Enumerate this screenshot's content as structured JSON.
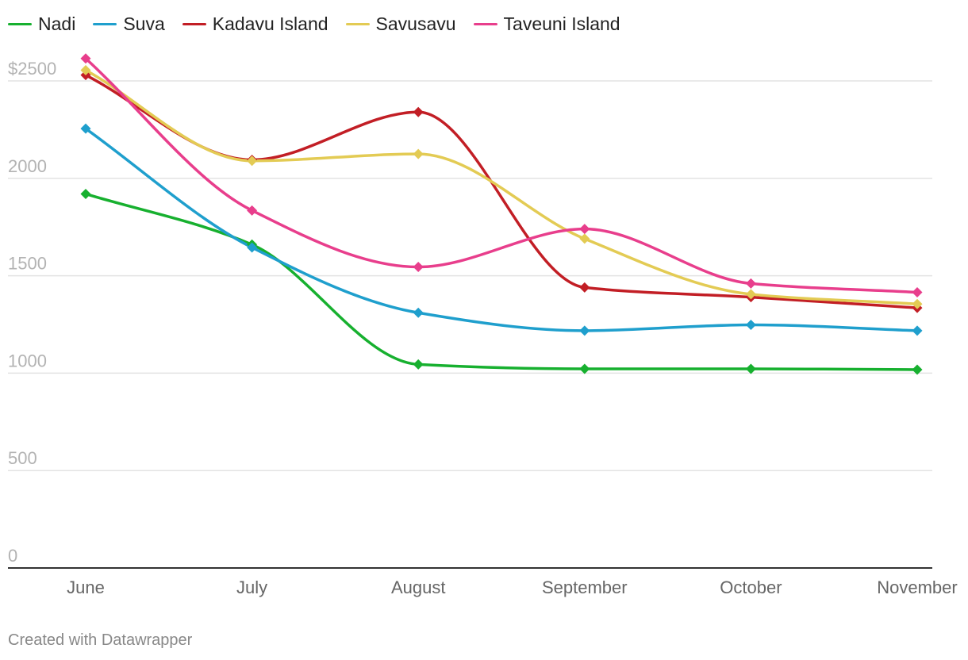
{
  "chart_data": {
    "type": "line",
    "categories": [
      "June",
      "July",
      "August",
      "September",
      "October",
      "November"
    ],
    "y_ticks": [
      {
        "value": 0,
        "label": "0"
      },
      {
        "value": 500,
        "label": "500"
      },
      {
        "value": 1000,
        "label": "1000"
      },
      {
        "value": 1500,
        "label": "1500"
      },
      {
        "value": 2000,
        "label": "2000"
      },
      {
        "value": 2500,
        "label": "$2500"
      }
    ],
    "ylim": [
      0,
      2500
    ],
    "grid": true,
    "legend_position": "top-left",
    "series": [
      {
        "name": "Nadi",
        "color": "#17b02f",
        "values": [
          1920,
          1660,
          1045,
          1022,
          1022,
          1018
        ]
      },
      {
        "name": "Suva",
        "color": "#1f9fcd",
        "values": [
          2255,
          1645,
          1310,
          1218,
          1248,
          1218
        ]
      },
      {
        "name": "Kadavu Island",
        "color": "#c21e25",
        "values": [
          2530,
          2095,
          2340,
          1440,
          1390,
          1335
        ]
      },
      {
        "name": "Savusavu",
        "color": "#e3cb54",
        "values": [
          2555,
          2090,
          2125,
          1690,
          1405,
          1355
        ]
      },
      {
        "name": "Taveuni Island",
        "color": "#e83e8c",
        "values": [
          2615,
          1835,
          1545,
          1740,
          1460,
          1415
        ]
      }
    ]
  },
  "footer": {
    "credit": "Created with Datawrapper"
  }
}
